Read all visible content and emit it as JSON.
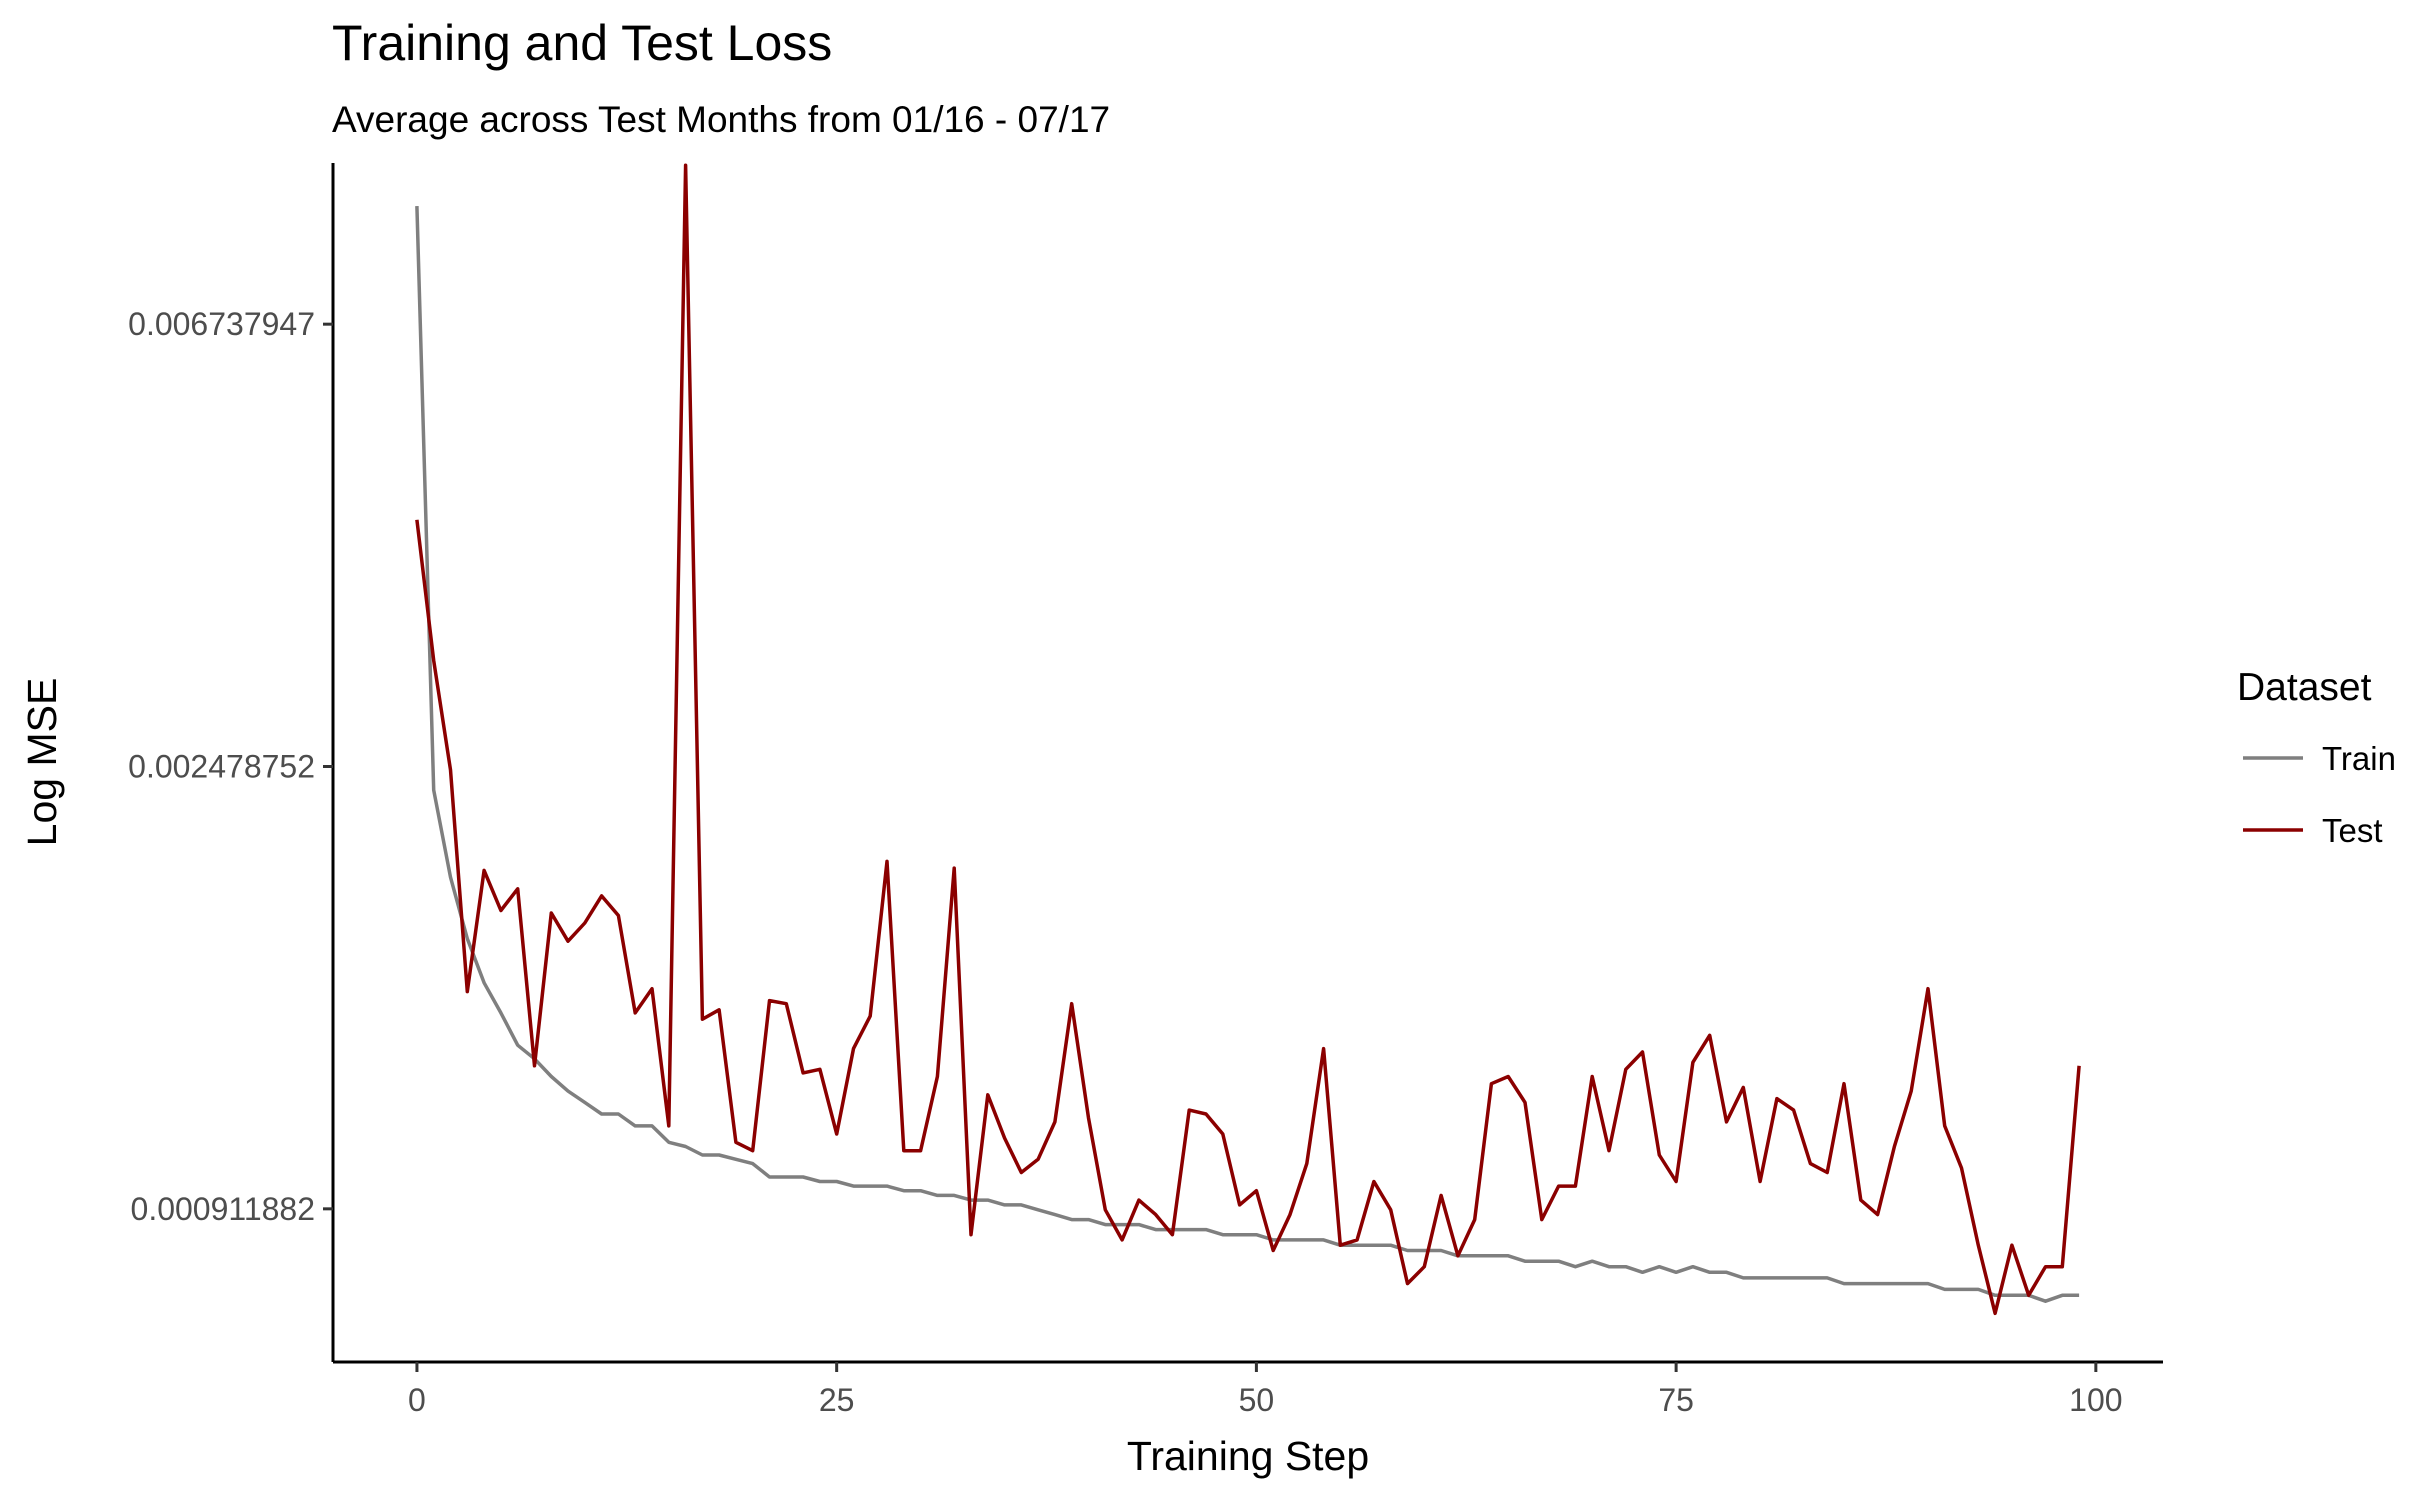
{
  "chart_data": {
    "type": "line",
    "title": "Training and Test Loss",
    "subtitle": "Average across Test Months from 01/16 - 07/17",
    "xlabel": "Training Step",
    "ylabel": "Log MSE",
    "y_scale": "log",
    "xlim": [
      -5,
      104
    ],
    "ylim": [
      0.000645,
      0.0097
    ],
    "x_ticks": [
      0,
      25,
      50,
      75,
      100
    ],
    "x_tick_labels": [
      "0",
      "25",
      "50",
      "75",
      "100"
    ],
    "y_ticks": [
      0.000911882,
      0.002478752,
      0.006737947
    ],
    "y_tick_labels": [
      "0.000911882",
      "0.002478752",
      "0.006737947"
    ],
    "grid": false,
    "legend": {
      "title": "Dataset",
      "position": "right"
    },
    "x": [
      0,
      1,
      2,
      3,
      4,
      5,
      6,
      7,
      8,
      9,
      10,
      11,
      12,
      13,
      14,
      15,
      16,
      17,
      18,
      19,
      20,
      21,
      22,
      23,
      24,
      25,
      26,
      27,
      28,
      29,
      30,
      31,
      32,
      33,
      34,
      35,
      36,
      37,
      38,
      39,
      40,
      41,
      42,
      43,
      44,
      45,
      46,
      47,
      48,
      49,
      50,
      51,
      52,
      53,
      54,
      55,
      56,
      57,
      58,
      59,
      60,
      61,
      62,
      63,
      64,
      65,
      66,
      67,
      68,
      69,
      70,
      71,
      72,
      73,
      74,
      75,
      76,
      77,
      78,
      79,
      80,
      81,
      82,
      83,
      84,
      85,
      86,
      87,
      88,
      89,
      90,
      91,
      92,
      93,
      94,
      95,
      96,
      97,
      98,
      99
    ],
    "series": [
      {
        "name": "Train",
        "color": "#7f7f7f",
        "values": [
          0.0088,
          0.00235,
          0.00193,
          0.00168,
          0.00152,
          0.00142,
          0.00132,
          0.00128,
          0.00123,
          0.00119,
          0.00116,
          0.00113,
          0.00113,
          0.0011,
          0.0011,
          0.00106,
          0.00105,
          0.00103,
          0.00103,
          0.00102,
          0.00101,
          0.00098,
          0.00098,
          0.00098,
          0.00097,
          0.00097,
          0.00096,
          0.00096,
          0.00096,
          0.00095,
          0.00095,
          0.00094,
          0.00094,
          0.00093,
          0.00093,
          0.00092,
          0.00092,
          0.00091,
          0.0009,
          0.00089,
          0.00089,
          0.00088,
          0.00088,
          0.00088,
          0.00087,
          0.00087,
          0.00087,
          0.00087,
          0.00086,
          0.00086,
          0.00086,
          0.00085,
          0.00085,
          0.00085,
          0.00085,
          0.00084,
          0.00084,
          0.00084,
          0.00084,
          0.00083,
          0.00083,
          0.00083,
          0.00082,
          0.00082,
          0.00082,
          0.00082,
          0.00081,
          0.00081,
          0.00081,
          0.0008,
          0.00081,
          0.0008,
          0.0008,
          0.00079,
          0.0008,
          0.00079,
          0.0008,
          0.00079,
          0.00079,
          0.00078,
          0.00078,
          0.00078,
          0.00078,
          0.00078,
          0.00078,
          0.00077,
          0.00077,
          0.00077,
          0.00077,
          0.00077,
          0.00077,
          0.00076,
          0.00076,
          0.00076,
          0.00075,
          0.00075,
          0.00075,
          0.00074,
          0.00075,
          0.00075
        ]
      },
      {
        "name": "Test",
        "color": "#8b0000",
        "values": [
          0.00433,
          0.00315,
          0.00246,
          0.00149,
          0.00196,
          0.00179,
          0.00188,
          0.00126,
          0.00178,
          0.00167,
          0.00174,
          0.00185,
          0.00177,
          0.00142,
          0.0015,
          0.0011,
          0.00965,
          0.0014,
          0.00143,
          0.00106,
          0.00104,
          0.00146,
          0.00145,
          0.00124,
          0.00125,
          0.00108,
          0.00131,
          0.00141,
          0.002,
          0.00104,
          0.00104,
          0.00123,
          0.00197,
          0.00086,
          0.00118,
          0.00107,
          0.00099,
          0.00102,
          0.00111,
          0.00145,
          0.00112,
          0.00091,
          0.00085,
          0.00093,
          0.0009,
          0.00086,
          0.00114,
          0.00113,
          0.00108,
          0.00092,
          0.00095,
          0.00083,
          0.0009,
          0.00101,
          0.00131,
          0.00084,
          0.00085,
          0.00097,
          0.00091,
          0.00077,
          0.0008,
          0.00094,
          0.00082,
          0.00089,
          0.00121,
          0.00123,
          0.00116,
          0.00089,
          0.00096,
          0.00096,
          0.00123,
          0.00104,
          0.00125,
          0.0013,
          0.00103,
          0.00097,
          0.00127,
          0.00135,
          0.00111,
          0.0012,
          0.00097,
          0.00117,
          0.00114,
          0.00101,
          0.00099,
          0.00121,
          0.00093,
          0.0009,
          0.00105,
          0.00119,
          0.0015,
          0.0011,
          0.001,
          0.00084,
          0.00072,
          0.00084,
          0.00075,
          0.0008,
          0.0008,
          0.00126
        ]
      }
    ]
  }
}
